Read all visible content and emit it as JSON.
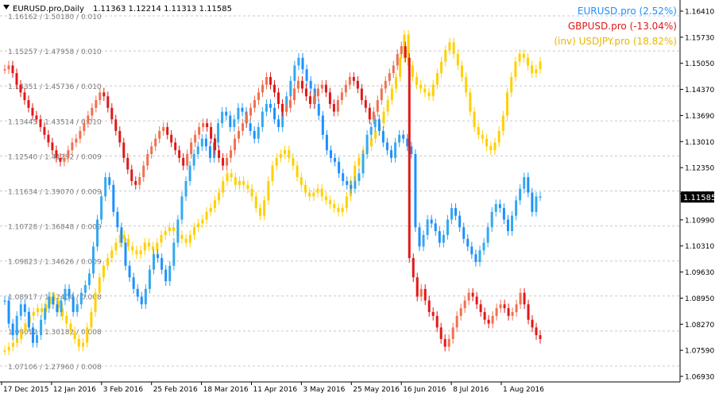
{
  "header": {
    "symbol_text": "EURUSD.pro,Daily",
    "ohlc_text": "1.11363 1.12214 1.11313 1.11585"
  },
  "legend": [
    {
      "label": "EURUSD.pro (2.52%)",
      "color": "#1e90ff"
    },
    {
      "label": "GBPUSD.pro (-13.04%)",
      "color": "#e01818"
    },
    {
      "label": "(inv) USDJPY.pro (18.82%)",
      "color": "#ffd000"
    }
  ],
  "colors": {
    "eur_up": "#33a8f0",
    "eur_down": "#1e90ff",
    "gbp_up": "#f07050",
    "gbp_down": "#e01818",
    "jpy": "#ffd000",
    "grid": "#c8c8c8",
    "axis": "#000000",
    "current_price_bg": "#000000"
  },
  "current_price": "1.11585",
  "chart_data": {
    "type": "line",
    "y_axis_ticks": [
      "1.16410",
      "1.15730",
      "1.15050",
      "1.14370",
      "1.13690",
      "1.13010",
      "1.12350",
      "1.11670",
      "1.10990",
      "1.10310",
      "1.09630",
      "1.08950",
      "1.08270",
      "1.07590",
      "1.06930"
    ],
    "grid_labels": [
      "1.16162 / 1.50180 / 0.010",
      "1.15257 / 1.47958 / 0.010",
      "1.14351 / 1.45736 / 0.010",
      "1.13445 / 1.43514 / 0.010",
      "1.12540 / 1.41292 / 0.009",
      "1.11634 / 1.39070 / 0.009",
      "1.10728 / 1.36848 / 0.009",
      "1.09823 / 1.34626 / 0.009",
      "1.08917 / 1.32404 / 0.008",
      "1.08012 / 1.30182 / 0.008",
      "1.07106 / 1.27960 / 0.008"
    ],
    "x_labels": [
      "17 Dec 2015",
      "12 Jan 2016",
      "3 Feb 2016",
      "25 Feb 2016",
      "18 Mar 2016",
      "11 Apr 2016",
      "3 May 2016",
      "25 May 2016",
      "16 Jun 2016",
      "8 Jul 2016",
      "1 Aug 2016"
    ],
    "ylim": [
      1.0693,
      1.1641
    ],
    "series": [
      {
        "name": "EURUSD.pro (2.52%)",
        "values": [
          1.089,
          1.083,
          1.08,
          1.085,
          1.088,
          1.086,
          1.082,
          1.078,
          1.08,
          1.084,
          1.087,
          1.09,
          1.088,
          1.086,
          1.089,
          1.092,
          1.09,
          1.086,
          1.088,
          1.091,
          1.093,
          1.096,
          1.103,
          1.11,
          1.116,
          1.121,
          1.119,
          1.112,
          1.108,
          1.104,
          1.098,
          1.095,
          1.092,
          1.09,
          1.088,
          1.092,
          1.097,
          1.101,
          1.1,
          1.097,
          1.094,
          1.098,
          1.104,
          1.11,
          1.116,
          1.12,
          1.124,
          1.127,
          1.129,
          1.131,
          1.129,
          1.126,
          1.13,
          1.135,
          1.138,
          1.137,
          1.134,
          1.136,
          1.139,
          1.138,
          1.135,
          1.133,
          1.131,
          1.134,
          1.138,
          1.14,
          1.139,
          1.136,
          1.134,
          1.138,
          1.142,
          1.146,
          1.15,
          1.152,
          1.149,
          1.146,
          1.144,
          1.14,
          1.137,
          1.132,
          1.128,
          1.126,
          1.125,
          1.122,
          1.12,
          1.119,
          1.118,
          1.12,
          1.122,
          1.127,
          1.132,
          1.134,
          1.136,
          1.133,
          1.13,
          1.128,
          1.126,
          1.13,
          1.132,
          1.131,
          1.129,
          1.127,
          1.108,
          1.103,
          1.106,
          1.11,
          1.109,
          1.107,
          1.104,
          1.106,
          1.11,
          1.113,
          1.111,
          1.108,
          1.105,
          1.103,
          1.101,
          1.099,
          1.102,
          1.104,
          1.108,
          1.112,
          1.114,
          1.113,
          1.11,
          1.107,
          1.111,
          1.115,
          1.118,
          1.121,
          1.117,
          1.112,
          1.116,
          1.116
        ]
      },
      {
        "name": "GBPUSD.pro (-13.04%)",
        "values": [
          1.149,
          1.15,
          1.148,
          1.145,
          1.143,
          1.141,
          1.139,
          1.137,
          1.136,
          1.134,
          1.132,
          1.13,
          1.128,
          1.126,
          1.125,
          1.126,
          1.128,
          1.13,
          1.131,
          1.133,
          1.135,
          1.137,
          1.139,
          1.141,
          1.143,
          1.142,
          1.139,
          1.136,
          1.133,
          1.13,
          1.126,
          1.123,
          1.12,
          1.119,
          1.121,
          1.124,
          1.127,
          1.129,
          1.131,
          1.133,
          1.134,
          1.132,
          1.13,
          1.128,
          1.126,
          1.124,
          1.127,
          1.13,
          1.132,
          1.134,
          1.135,
          1.134,
          1.131,
          1.128,
          1.126,
          1.124,
          1.126,
          1.128,
          1.131,
          1.133,
          1.135,
          1.137,
          1.139,
          1.141,
          1.143,
          1.145,
          1.147,
          1.145,
          1.143,
          1.14,
          1.138,
          1.139,
          1.141,
          1.144,
          1.146,
          1.144,
          1.142,
          1.14,
          1.142,
          1.144,
          1.145,
          1.143,
          1.14,
          1.138,
          1.141,
          1.143,
          1.145,
          1.147,
          1.146,
          1.144,
          1.141,
          1.139,
          1.136,
          1.138,
          1.141,
          1.144,
          1.146,
          1.148,
          1.15,
          1.153,
          1.155,
          1.152,
          1.1,
          1.095,
          1.09,
          1.092,
          1.089,
          1.086,
          1.085,
          1.082,
          1.079,
          1.077,
          1.079,
          1.082,
          1.085,
          1.087,
          1.089,
          1.091,
          1.09,
          1.088,
          1.086,
          1.084,
          1.083,
          1.085,
          1.087,
          1.088,
          1.087,
          1.085,
          1.086,
          1.088,
          1.091,
          1.088,
          1.084,
          1.082,
          1.08,
          1.079
        ]
      },
      {
        "name": "(inv) USDJPY.pro (18.82%)",
        "values": [
          1.076,
          1.077,
          1.078,
          1.079,
          1.081,
          1.083,
          1.085,
          1.086,
          1.087,
          1.086,
          1.088,
          1.09,
          1.089,
          1.087,
          1.085,
          1.083,
          1.081,
          1.079,
          1.077,
          1.078,
          1.082,
          1.086,
          1.091,
          1.095,
          1.098,
          1.1,
          1.102,
          1.104,
          1.106,
          1.105,
          1.103,
          1.102,
          1.101,
          1.102,
          1.104,
          1.103,
          1.102,
          1.104,
          1.106,
          1.107,
          1.108,
          1.107,
          1.106,
          1.105,
          1.104,
          1.106,
          1.108,
          1.109,
          1.11,
          1.112,
          1.113,
          1.115,
          1.117,
          1.12,
          1.122,
          1.121,
          1.119,
          1.12,
          1.119,
          1.118,
          1.116,
          1.113,
          1.111,
          1.115,
          1.12,
          1.124,
          1.126,
          1.127,
          1.128,
          1.126,
          1.124,
          1.121,
          1.119,
          1.117,
          1.116,
          1.117,
          1.118,
          1.116,
          1.115,
          1.114,
          1.113,
          1.112,
          1.113,
          1.116,
          1.12,
          1.124,
          1.126,
          1.128,
          1.129,
          1.131,
          1.133,
          1.135,
          1.138,
          1.141,
          1.144,
          1.147,
          1.152,
          1.158,
          1.15,
          1.147,
          1.145,
          1.144,
          1.143,
          1.142,
          1.145,
          1.148,
          1.151,
          1.154,
          1.156,
          1.153,
          1.15,
          1.147,
          1.143,
          1.138,
          1.134,
          1.132,
          1.131,
          1.129,
          1.128,
          1.13,
          1.133,
          1.137,
          1.143,
          1.147,
          1.151,
          1.153,
          1.152,
          1.15,
          1.148,
          1.149,
          1.151
        ]
      }
    ]
  }
}
